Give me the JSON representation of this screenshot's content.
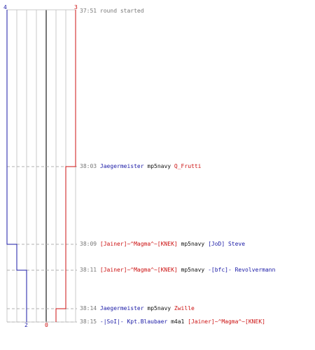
{
  "graph": {
    "team_blue": {
      "name": "blue",
      "color": "#1a1aa6",
      "start_count": "4",
      "end_count": "2"
    },
    "team_red": {
      "name": "red",
      "color": "#cc1111",
      "start_count": "3",
      "end_count": "0"
    }
  },
  "events": [
    {
      "time": "37:51",
      "text": "round started"
    },
    {
      "time": "38:03",
      "killer": "Jaegermeister",
      "killer_team": "blue",
      "weapon": "mp5navy",
      "victim": "Q_Frutti",
      "victim_team": "red"
    },
    {
      "time": "38:09",
      "killer": "[Jainer]~^Magma^~[KNEK]",
      "killer_team": "red",
      "weapon": "mp5navy",
      "victim": "[JoD] Steve",
      "victim_team": "blue"
    },
    {
      "time": "38:11",
      "killer": "[Jainer]~^Magma^~[KNEK]",
      "killer_team": "red",
      "weapon": "mp5navy",
      "victim": "-[bfc]- Revolvermann",
      "victim_team": "blue"
    },
    {
      "time": "38:14",
      "killer": "Jaegermeister",
      "killer_team": "blue",
      "weapon": "mp5navy",
      "victim": "Zwille",
      "victim_team": "red"
    },
    {
      "time": "38:15",
      "killer": "-|SoI|- Kpt.Blaubaer",
      "killer_team": "blue",
      "weapon": "m4a1",
      "victim": "[Jainer]~^Magma^~[KNEK]",
      "victim_team": "red"
    }
  ]
}
